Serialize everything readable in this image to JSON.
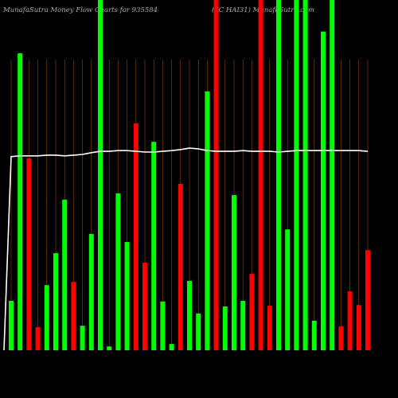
{
  "header": {
    "title_left": "MunafaSutra  Money Flow  Charts for 935584",
    "title_right": "(7C  HAI31) MunafaSutra.com"
  },
  "chart_data": {
    "type": "bar",
    "title": "MunafaSutra  Money Flow  Charts for 935584",
    "xlabel": "",
    "ylabel": "",
    "ylim": [
      0,
      100
    ],
    "grid": "vertical",
    "legend": "none",
    "colors": {
      "up": "#00ff00",
      "down": "#ff0000",
      "line": "#ffffff",
      "grid": "#8b4a00",
      "background": "#000000"
    },
    "bars": [
      {
        "value": 14.1,
        "color": "up"
      },
      {
        "value": 84.8,
        "color": "up"
      },
      {
        "value": 54.8,
        "color": "down"
      },
      {
        "value": 6.6,
        "color": "down"
      },
      {
        "value": 18.6,
        "color": "up"
      },
      {
        "value": 27.7,
        "color": "up"
      },
      {
        "value": 43.0,
        "color": "up"
      },
      {
        "value": 19.5,
        "color": "down"
      },
      {
        "value": 7.0,
        "color": "up"
      },
      {
        "value": 33.2,
        "color": "up"
      },
      {
        "value": 100,
        "color": "up"
      },
      {
        "value": 1.1,
        "color": "up"
      },
      {
        "value": 44.8,
        "color": "up"
      },
      {
        "value": 30.9,
        "color": "up"
      },
      {
        "value": 64.8,
        "color": "down"
      },
      {
        "value": 25.0,
        "color": "down"
      },
      {
        "value": 59.5,
        "color": "up"
      },
      {
        "value": 13.9,
        "color": "up"
      },
      {
        "value": 1.8,
        "color": "up"
      },
      {
        "value": 47.5,
        "color": "down"
      },
      {
        "value": 19.8,
        "color": "up"
      },
      {
        "value": 10.5,
        "color": "up"
      },
      {
        "value": 73.9,
        "color": "up"
      },
      {
        "value": 100,
        "color": "down"
      },
      {
        "value": 12.5,
        "color": "up"
      },
      {
        "value": 44.3,
        "color": "up"
      },
      {
        "value": 14.1,
        "color": "up"
      },
      {
        "value": 21.8,
        "color": "down"
      },
      {
        "value": 100,
        "color": "down"
      },
      {
        "value": 12.7,
        "color": "down"
      },
      {
        "value": 100,
        "color": "up"
      },
      {
        "value": 34.5,
        "color": "up"
      },
      {
        "value": 100,
        "color": "up"
      },
      {
        "value": 100,
        "color": "up"
      },
      {
        "value": 8.4,
        "color": "up"
      },
      {
        "value": 91.0,
        "color": "up"
      },
      {
        "value": 100,
        "color": "up"
      },
      {
        "value": 6.8,
        "color": "down"
      },
      {
        "value": 16.8,
        "color": "down"
      },
      {
        "value": 12.9,
        "color": "down"
      },
      {
        "value": 28.6,
        "color": "down"
      }
    ],
    "line": {
      "name": "",
      "values": [
        55.3,
        55.5,
        55.5,
        55.5,
        55.7,
        55.7,
        55.5,
        55.7,
        55.9,
        56.4,
        56.8,
        56.8,
        57.0,
        57.0,
        56.8,
        56.6,
        56.6,
        56.8,
        57.0,
        57.3,
        57.7,
        57.5,
        57.0,
        56.8,
        56.8,
        56.8,
        57.0,
        56.8,
        56.8,
        56.8,
        56.6,
        56.8,
        57.0,
        57.0,
        57.0,
        57.0,
        57.0,
        57.0,
        57.0,
        57.0,
        56.8
      ],
      "start_value": 0
    }
  }
}
